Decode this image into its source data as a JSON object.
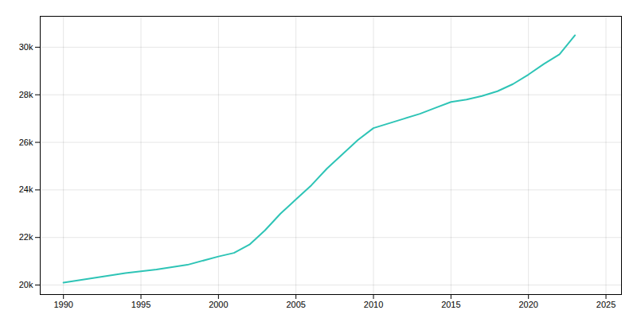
{
  "chart_data": {
    "type": "line",
    "x": [
      1990,
      1992,
      1994,
      1996,
      1998,
      2000,
      2001,
      2002,
      2003,
      2004,
      2005,
      2006,
      2007,
      2008,
      2009,
      2010,
      2011,
      2012,
      2013,
      2014,
      2015,
      2016,
      2017,
      2018,
      2019,
      2020,
      2021,
      2022,
      2023
    ],
    "values": [
      20100,
      20300,
      20500,
      20650,
      20850,
      21200,
      21350,
      21700,
      22300,
      23000,
      23600,
      24200,
      24900,
      25500,
      26100,
      26600,
      26800,
      27000,
      27200,
      27450,
      27700,
      27800,
      27950,
      28150,
      28450,
      28850,
      29300,
      29700,
      30500
    ],
    "color": "#2EC4B6",
    "xlim": [
      1988.5,
      2026
    ],
    "ylim": [
      19600,
      31300
    ],
    "xticks": [
      1990,
      1995,
      2000,
      2005,
      2010,
      2015,
      2020,
      2025
    ],
    "yticks": [
      {
        "value": 20000,
        "label": "20k"
      },
      {
        "value": 22000,
        "label": "22k"
      },
      {
        "value": 24000,
        "label": "24k"
      },
      {
        "value": 26000,
        "label": "26k"
      },
      {
        "value": 28000,
        "label": "28k"
      },
      {
        "value": 30000,
        "label": "30k"
      }
    ],
    "grid": true
  }
}
